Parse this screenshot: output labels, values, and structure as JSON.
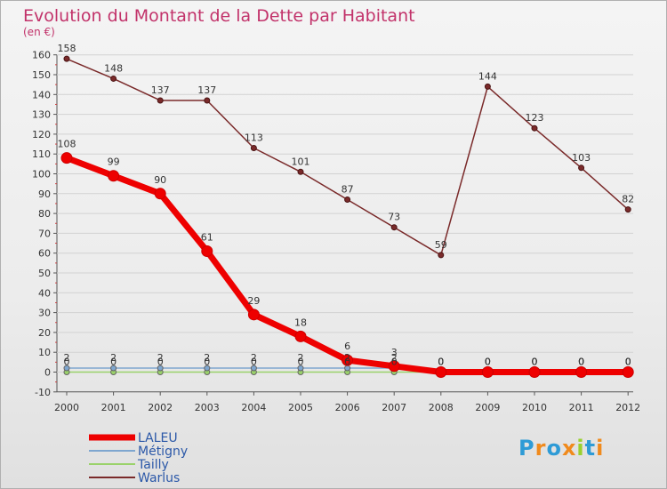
{
  "chart_data": {
    "type": "line",
    "title": "Evolution du Montant de la Dette par Habitant",
    "unit_label": "(en €)",
    "x": [
      "2000",
      "2001",
      "2002",
      "2003",
      "2004",
      "2005",
      "2006",
      "2007",
      "2008",
      "2009",
      "2010",
      "2011",
      "2012"
    ],
    "ylim": [
      -10,
      160
    ],
    "yticks": [
      -10,
      0,
      10,
      20,
      30,
      40,
      50,
      60,
      70,
      80,
      90,
      100,
      110,
      120,
      130,
      140,
      150,
      160
    ],
    "series": [
      {
        "name": "Warlus",
        "color": "#7a2a2a",
        "labels": true,
        "values": [
          158,
          148,
          137,
          137,
          113,
          101,
          87,
          73,
          59,
          144,
          123,
          103,
          82
        ]
      },
      {
        "name": "Tailly",
        "color": "#9ad26a",
        "labels": true,
        "values": [
          0,
          0,
          0,
          0,
          0,
          0,
          0,
          0,
          0,
          0,
          0,
          0,
          0
        ]
      },
      {
        "name": "Métigny",
        "color": "#7ea6cf",
        "labels": true,
        "values": [
          2,
          2,
          2,
          2,
          2,
          2,
          2,
          2,
          0,
          0,
          0,
          0,
          0
        ]
      },
      {
        "name": "LALEU",
        "color": "#ee0000",
        "labels": true,
        "values": [
          108,
          99,
          90,
          61,
          29,
          18,
          6,
          3,
          0,
          0,
          0,
          0,
          0
        ]
      }
    ],
    "legend": [
      "LALEU",
      "Métigny",
      "Tailly",
      "Warlus"
    ]
  },
  "logo": {
    "text": "Proxiti",
    "colors": [
      "#2e9bd6",
      "#f08a1c",
      "#2e9bd6",
      "#f08a1c",
      "#9ad02e",
      "#2e9bd6",
      "#f08a1c"
    ]
  }
}
